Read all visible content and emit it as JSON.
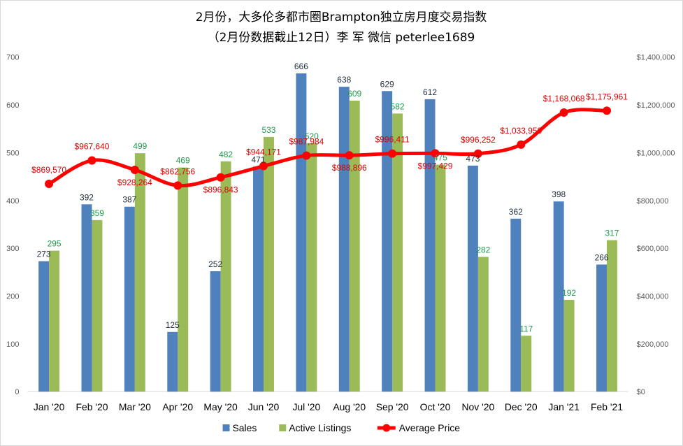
{
  "chart_data": {
    "type": "bar",
    "title_line1": "2月份，大多伦多都市圈Brampton独立房月度交易指数",
    "title_line2": "（2月份数据截止12日）李 军  微信  peterlee1689",
    "categories": [
      "Jan '20",
      "Feb '20",
      "Mar '20",
      "Apr '20",
      "May '20",
      "Jun '20",
      "Jul '20",
      "Aug '20",
      "Sep '20",
      "Oct '20",
      "Nov '20",
      "Dec '20",
      "Jan '21",
      "Feb '21"
    ],
    "series": [
      {
        "name": "Sales",
        "type": "bar",
        "axis": "left",
        "color": "#4f81bd",
        "values": [
          273,
          392,
          387,
          125,
          252,
          471,
          666,
          638,
          629,
          612,
          473,
          362,
          398,
          266
        ],
        "labels": [
          "273",
          "392",
          "387",
          "125",
          "252",
          "471",
          "666",
          "638",
          "629",
          "612",
          "473",
          "362",
          "398",
          "266"
        ]
      },
      {
        "name": "Active Listings",
        "type": "bar",
        "axis": "left",
        "color": "#9bbb59",
        "values": [
          295,
          359,
          499,
          469,
          482,
          533,
          520,
          609,
          582,
          475,
          282,
          117,
          192,
          317
        ],
        "labels": [
          "295",
          "359",
          "499",
          "469",
          "482",
          "533",
          "520",
          "609",
          "582",
          "475",
          "282",
          "117",
          "192",
          "317"
        ]
      },
      {
        "name": "Average Price",
        "type": "line",
        "axis": "right",
        "color": "#ff0000",
        "values": [
          869570,
          967640,
          928264,
          862756,
          896843,
          944171,
          987984,
          988896,
          996411,
          997429,
          996252,
          1033958,
          1168068,
          1175961
        ],
        "labels": [
          "$869,570",
          "$967,640",
          "$928,264",
          "$862,756",
          "$896,843",
          "$944,171",
          "$987,984",
          "$988,896",
          "$996,411",
          "$997,429",
          "$996,252",
          "$1,033,958",
          "$1,168,068",
          "$1,175,961"
        ]
      }
    ],
    "y_left": {
      "min": 0,
      "max": 700,
      "ticks": [
        "0",
        "100",
        "200",
        "300",
        "400",
        "500",
        "600",
        "700"
      ]
    },
    "y_right": {
      "min": 0,
      "max": 1400000,
      "ticks": [
        "$0",
        "$200,000",
        "$400,000",
        "$600,000",
        "$800,000",
        "$1,000,000",
        "$1,200,000",
        "$1,400,000"
      ]
    },
    "legend_position": "bottom",
    "grid": false
  }
}
